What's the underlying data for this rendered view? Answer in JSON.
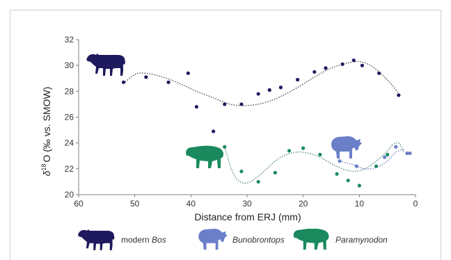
{
  "chart_data": {
    "type": "scatter",
    "xlabel": "Distance from ERJ (mm)",
    "ylabel": "δ¹⁸O (‰ vs. SMOW)",
    "ylabel_parts": {
      "delta": "δ",
      "sup": "18",
      "rest": "O (‰ vs. SMOW)"
    },
    "xlim": [
      60,
      0
    ],
    "ylim": [
      20,
      32
    ],
    "x_reversed": true,
    "xticks": [
      60,
      50,
      40,
      30,
      20,
      10,
      0
    ],
    "yticks": [
      20,
      22,
      24,
      26,
      28,
      30,
      32
    ],
    "grid": false,
    "legend_position": "bottom",
    "series": [
      {
        "name": "modern Bos",
        "color": "#1f1a5e",
        "points": [
          [
            52,
            28.7
          ],
          [
            48,
            29.1
          ],
          [
            44,
            28.7
          ],
          [
            40.5,
            29.4
          ],
          [
            39,
            26.8
          ],
          [
            36,
            24.9
          ],
          [
            34,
            27.0
          ],
          [
            31,
            27.0
          ],
          [
            28,
            27.8
          ],
          [
            26,
            28.1
          ],
          [
            24,
            28.3
          ],
          [
            21,
            28.9
          ],
          [
            18,
            29.5
          ],
          [
            16,
            29.8
          ],
          [
            13,
            30.1
          ],
          [
            11,
            30.4
          ],
          [
            9.5,
            30.0
          ],
          [
            6.5,
            29.4
          ],
          [
            3,
            27.7
          ]
        ]
      },
      {
        "name": "Bunobrontops",
        "color": "#6b7fc9",
        "points": [
          [
            13.5,
            22.6
          ],
          [
            10.5,
            22.2
          ],
          [
            5.5,
            22.9
          ],
          [
            3.5,
            23.7
          ],
          [
            1.5,
            23.2
          ],
          [
            1,
            23.2
          ]
        ]
      },
      {
        "name": "Paramynodon",
        "color": "#1a8a5e",
        "points": [
          [
            34,
            23.7
          ],
          [
            31,
            21.8
          ],
          [
            28,
            21.0
          ],
          [
            25,
            21.7
          ],
          [
            22.5,
            23.4
          ],
          [
            20,
            23.6
          ],
          [
            17,
            23.1
          ],
          [
            14,
            21.6
          ],
          [
            12,
            21.1
          ],
          [
            10,
            20.7
          ],
          [
            7,
            22.2
          ],
          [
            5,
            23.1
          ]
        ]
      }
    ],
    "trendlines": [
      {
        "series": "modern Bos",
        "points": [
          [
            52,
            28.6
          ],
          [
            50,
            29.3
          ],
          [
            48,
            29.4
          ],
          [
            45,
            29.1
          ],
          [
            42,
            28.6
          ],
          [
            39,
            28.0
          ],
          [
            36,
            27.5
          ],
          [
            33,
            27.0
          ],
          [
            30,
            26.9
          ],
          [
            27,
            27.1
          ],
          [
            24,
            27.6
          ],
          [
            21,
            28.3
          ],
          [
            18,
            29.1
          ],
          [
            15,
            29.8
          ],
          [
            12,
            30.2
          ],
          [
            10,
            30.3
          ],
          [
            8,
            30.0
          ],
          [
            6,
            29.3
          ],
          [
            4,
            28.4
          ],
          [
            3,
            27.8
          ]
        ]
      },
      {
        "series": "Bunobrontops",
        "points": [
          [
            13.5,
            22.6
          ],
          [
            11,
            22.3
          ],
          [
            9,
            22.0
          ],
          [
            7,
            22.1
          ],
          [
            5,
            22.6
          ],
          [
            3.5,
            23.3
          ],
          [
            2,
            23.5
          ]
        ]
      },
      {
        "series": "Paramynodon",
        "points": [
          [
            34,
            23.7
          ],
          [
            33.5,
            23.0
          ],
          [
            33,
            22.2
          ],
          [
            32,
            21.3
          ],
          [
            31,
            20.95
          ],
          [
            30,
            20.9
          ],
          [
            29,
            21.1
          ],
          [
            27,
            21.8
          ],
          [
            25,
            22.6
          ],
          [
            23,
            23.1
          ],
          [
            21,
            23.3
          ],
          [
            19,
            23.2
          ],
          [
            17,
            22.9
          ],
          [
            15,
            22.4
          ],
          [
            13,
            22.0
          ],
          [
            11,
            21.8
          ],
          [
            9,
            22.0
          ],
          [
            7,
            22.6
          ],
          [
            5,
            23.4
          ],
          [
            4,
            23.9
          ],
          [
            3,
            24.0
          ],
          [
            2.5,
            23.7
          ],
          [
            2,
            23.2
          ]
        ]
      }
    ]
  },
  "colors": {
    "bos": "#1f1a5e",
    "bunobrontops": "#6b7fc9",
    "paramynodon": "#1a8a5e",
    "axis": "#7f7f7f",
    "trend": "#333333"
  },
  "icons": {
    "bos": "cow-silhouette-icon",
    "bunobrontops": "bunobrontops-silhouette-icon",
    "paramynodon": "paramynodon-silhouette-icon"
  },
  "legend": {
    "bos": {
      "prefix": "modern ",
      "genus": "Bos"
    },
    "bunobrontops": {
      "genus": "Bunobrontops"
    },
    "paramynodon": {
      "genus": "Paramynodon"
    }
  }
}
